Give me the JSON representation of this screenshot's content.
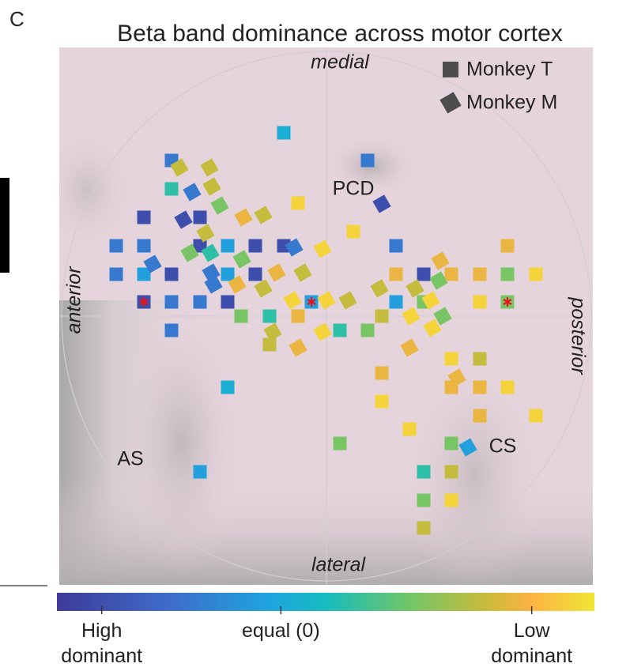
{
  "panel_label": "C",
  "chart_data": {
    "type": "scatter",
    "title": "Beta band dominance across motor cortex",
    "orientation_labels": {
      "top": "medial",
      "bottom": "lateral",
      "left": "anterior",
      "right": "posterior"
    },
    "landmarks": [
      {
        "label": "PCD",
        "x": 447,
        "y": 240
      },
      {
        "label": "AS",
        "x": 165,
        "y": 582
      },
      {
        "label": "CS",
        "x": 636,
        "y": 566
      }
    ],
    "xlim": [
      75,
      750
    ],
    "ylim": [
      740,
      60
    ],
    "legend": "top-right",
    "clim": [
      -1,
      1.4
    ],
    "cticks": [
      {
        "value": -0.8,
        "label": "High dominant"
      },
      {
        "value": 0,
        "label": "equal (0)"
      },
      {
        "value": 1.12,
        "label": "Low dominant"
      }
    ],
    "series": [
      {
        "name": "Monkey T",
        "marker": "square",
        "color": "#4d4d4d",
        "x": [
          359,
          217,
          465,
          217,
          377,
          182,
          253,
          447,
          147,
          182,
          253,
          288,
          323,
          359,
          501,
          642,
          147,
          182,
          217,
          288,
          323,
          501,
          536,
          571,
          607,
          642,
          678,
          182,
          217,
          253,
          288,
          394,
          501,
          536,
          607,
          642,
          217,
          305,
          341,
          377,
          430,
          465,
          483,
          341,
          483,
          571,
          607,
          571,
          607,
          642,
          483,
          288,
          607,
          678,
          518,
          430,
          571,
          536,
          571,
          253,
          536,
          571,
          536
        ],
        "y": [
          168,
          203,
          203,
          239,
          257,
          275,
          275,
          293,
          311,
          311,
          311,
          311,
          311,
          311,
          311,
          311,
          347,
          347,
          347,
          347,
          347,
          347,
          347,
          347,
          347,
          347,
          347,
          382,
          382,
          382,
          382,
          382,
          382,
          382,
          382,
          382,
          418,
          400,
          400,
          400,
          418,
          418,
          400,
          436,
          472,
          454,
          454,
          490,
          490,
          490,
          508,
          490,
          526,
          526,
          543,
          561,
          561,
          597,
          597,
          597,
          633,
          633,
          668
        ],
        "values": [
          0.05,
          -0.4,
          -0.4,
          0.3,
          1.3,
          -0.8,
          -0.8,
          1.3,
          -0.4,
          -0.4,
          -0.8,
          -0.1,
          -0.8,
          -0.8,
          -0.4,
          1.05,
          -0.4,
          -0.1,
          -0.8,
          -0.1,
          -0.8,
          1.05,
          -0.8,
          1.05,
          1.05,
          0.6,
          1.3,
          -0.8,
          -0.4,
          -0.4,
          -0.8,
          -0.1,
          -0.1,
          0.6,
          1.3,
          0.6,
          -0.4,
          0.6,
          0.3,
          1.05,
          0.3,
          0.6,
          0.9,
          0.9,
          1.05,
          1.3,
          0.9,
          1.05,
          1.05,
          1.3,
          1.3,
          0.05,
          1.05,
          1.3,
          1.3,
          0.6,
          0.6,
          0.3,
          0.9,
          -0.1,
          0.6,
          1.3,
          0.9
        ]
      },
      {
        "name": "Monkey M",
        "marker": "diamond",
        "color": "#4d4d4d",
        "x": [
          227,
          265,
          268,
          243,
          278,
          232,
          308,
          333,
          483,
          260,
          372,
          408,
          266,
          240,
          193,
          267,
          306,
          350,
          383,
          557,
          270,
          300,
          333,
          370,
          413,
          440,
          480,
          525,
          555,
          545,
          520,
          560,
          547,
          408,
          345,
          377,
          518,
          578,
          592
        ],
        "y": [
          212,
          212,
          236,
          243,
          260,
          278,
          275,
          272,
          258,
          295,
          313,
          315,
          320,
          320,
          334,
          345,
          328,
          345,
          345,
          330,
          360,
          360,
          365,
          380,
          380,
          380,
          365,
          365,
          355,
          380,
          400,
          400,
          415,
          420,
          420,
          440,
          440,
          478,
          566
        ],
        "values": [
          0.9,
          0.9,
          0.9,
          -0.4,
          0.6,
          -0.8,
          1.05,
          0.9,
          -0.8,
          0.9,
          -0.4,
          1.3,
          0.3,
          0.6,
          -0.4,
          -0.4,
          0.6,
          1.05,
          0.9,
          1.05,
          -0.4,
          1.05,
          0.9,
          1.3,
          1.3,
          0.9,
          0.9,
          0.9,
          0.6,
          1.3,
          1.3,
          0.6,
          1.3,
          1.3,
          0.9,
          1.05,
          1.05,
          1.05,
          -0.1
        ]
      }
    ]
  }
}
